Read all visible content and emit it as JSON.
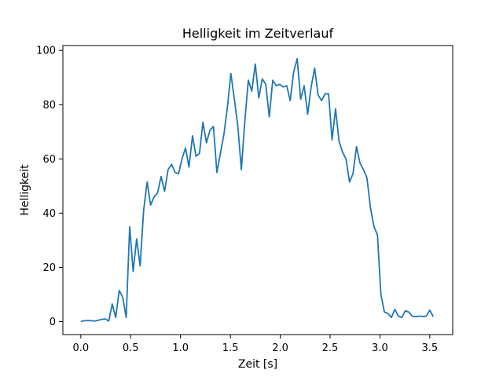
{
  "chart_data": {
    "type": "line",
    "title": "Helligkeit im Zeitverlauf",
    "xlabel": "Zeit [s]",
    "ylabel": "Helligkeit",
    "xlim": [
      -0.18,
      3.73
    ],
    "ylim": [
      -4.8,
      101.8
    ],
    "xticks": [
      0,
      0.5,
      1,
      1.5,
      2,
      2.5,
      3,
      3.5
    ],
    "xtick_labels": [
      "0.0",
      "0.5",
      "1.0",
      "1.5",
      "2.0",
      "2.5",
      "3.0",
      "3.5"
    ],
    "yticks": [
      0,
      20,
      40,
      60,
      80,
      100
    ],
    "ytick_labels": [
      "0",
      "20",
      "40",
      "60",
      "80",
      "100"
    ],
    "grid": false,
    "color": "#1f77b4",
    "series": [
      {
        "x": [
          0.0,
          0.035,
          0.07,
          0.105,
          0.14,
          0.175,
          0.21,
          0.245,
          0.28,
          0.315,
          0.35,
          0.385,
          0.42,
          0.455,
          0.49,
          0.525,
          0.56,
          0.595,
          0.63,
          0.665,
          0.7,
          0.735,
          0.77,
          0.805,
          0.84,
          0.875,
          0.91,
          0.945,
          0.98,
          1.015,
          1.05,
          1.085,
          1.12,
          1.155,
          1.19,
          1.225,
          1.26,
          1.295,
          1.33,
          1.365,
          1.4,
          1.435,
          1.47,
          1.505,
          1.54,
          1.575,
          1.61,
          1.645,
          1.68,
          1.715,
          1.75,
          1.785,
          1.82,
          1.855,
          1.89,
          1.925,
          1.96,
          1.995,
          2.03,
          2.065,
          2.1,
          2.135,
          2.17,
          2.205,
          2.24,
          2.275,
          2.31,
          2.345,
          2.38,
          2.415,
          2.45,
          2.485,
          2.52,
          2.555,
          2.59,
          2.625,
          2.66,
          2.695,
          2.73,
          2.765,
          2.8,
          2.835,
          2.87,
          2.905,
          2.94,
          2.975,
          3.01,
          3.045,
          3.08,
          3.115,
          3.15,
          3.185,
          3.22,
          3.255,
          3.29,
          3.325,
          3.36,
          3.395,
          3.43,
          3.465,
          3.5,
          3.535
        ],
        "y": [
          0.0,
          0.3,
          0.4,
          0.3,
          0.2,
          0.5,
          0.8,
          1.0,
          0.2,
          6.5,
          1.5,
          11.5,
          9.0,
          1.5,
          35.0,
          18.5,
          30.5,
          20.5,
          41.0,
          51.5,
          43.0,
          46.0,
          47.5,
          53.5,
          48.0,
          56.0,
          58.0,
          55.0,
          54.5,
          60.0,
          64.0,
          57.0,
          68.5,
          61.0,
          62.0,
          73.5,
          66.0,
          70.5,
          72.0,
          55.0,
          62.0,
          69.0,
          79.0,
          91.5,
          82.0,
          72.0,
          56.0,
          74.0,
          89.0,
          85.0,
          95.0,
          82.5,
          89.5,
          87.5,
          75.5,
          89.0,
          87.0,
          87.5,
          86.5,
          87.0,
          81.5,
          92.0,
          97.0,
          82.0,
          87.0,
          76.5,
          86.5,
          93.5,
          83.5,
          81.5,
          84.0,
          84.0,
          67.0,
          78.5,
          66.5,
          62.5,
          60.0,
          51.5,
          54.5,
          64.5,
          58.5,
          56.0,
          53.0,
          42.0,
          35.0,
          32.0,
          10.0,
          3.5,
          3.0,
          1.5,
          4.5,
          2.0,
          1.5,
          4.0,
          3.5,
          2.0,
          1.8,
          2.0,
          1.9,
          2.0,
          4.2,
          1.8
        ]
      }
    ]
  }
}
